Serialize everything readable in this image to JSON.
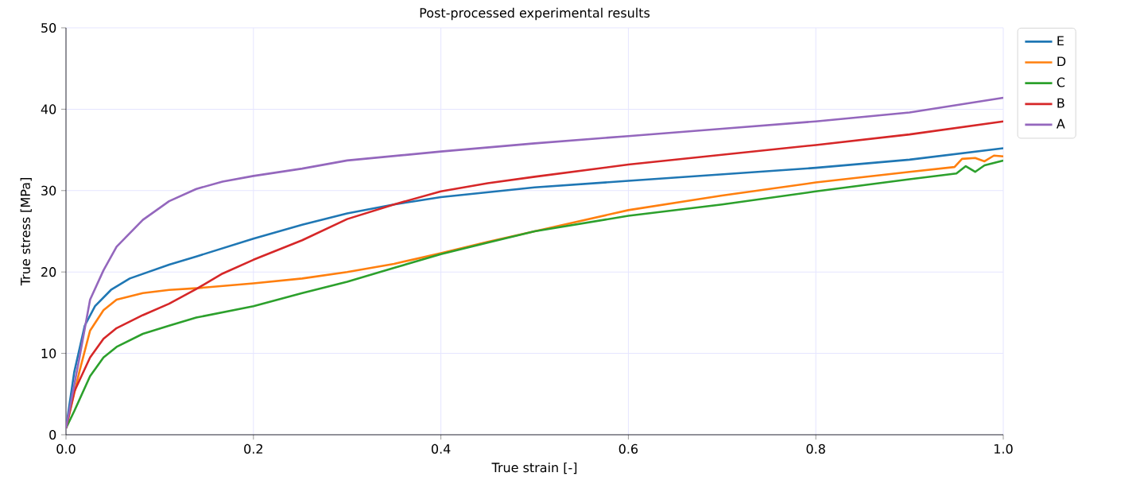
{
  "chart_data": {
    "type": "line",
    "title": "Post-processed experimental results",
    "xlabel": "True strain [-]",
    "ylabel": "True stress [MPa]",
    "xlim": [
      0,
      1
    ],
    "ylim": [
      0,
      50
    ],
    "xticks": [
      {
        "value": 0,
        "label": "0.0"
      },
      0.2,
      0.4,
      0.6,
      0.8,
      {
        "value": 1,
        "label": "1.0"
      }
    ],
    "yticks": [
      0,
      10,
      20,
      30,
      40,
      50
    ],
    "grid": true,
    "legend": "top right",
    "marker": "none",
    "line_style": "solid",
    "series": [
      {
        "name": "E",
        "color": "#1f77b4",
        "x": [
          0,
          0.0088,
          0.02,
          0.031,
          0.048,
          0.068,
          0.11,
          0.139,
          0.2,
          0.252,
          0.3,
          0.35,
          0.4,
          0.5,
          0.6,
          0.7,
          0.8,
          0.9,
          1.0
        ],
        "values": [
          0.8,
          7.7,
          13.4,
          15.8,
          17.8,
          19.2,
          20.9,
          21.9,
          24.1,
          25.8,
          27.2,
          28.3,
          29.2,
          30.4,
          31.2,
          32.0,
          32.8,
          33.8,
          35.2
        ]
      },
      {
        "name": "D",
        "color": "#ff7f0e",
        "x": [
          0,
          0.0144,
          0.0257,
          0.04,
          0.054,
          0.082,
          0.11,
          0.139,
          0.2,
          0.252,
          0.3,
          0.35,
          0.4,
          0.45,
          0.5,
          0.6,
          0.7,
          0.8,
          0.9,
          0.948,
          0.956,
          0.97,
          0.98,
          0.99,
          1.0
        ],
        "values": [
          0.8,
          7.8,
          12.8,
          15.3,
          16.6,
          17.4,
          17.8,
          18.0,
          18.6,
          19.2,
          20.0,
          21.0,
          22.3,
          23.7,
          25.0,
          27.6,
          29.4,
          31.0,
          32.3,
          32.9,
          33.9,
          34.0,
          33.6,
          34.3,
          34.2
        ]
      },
      {
        "name": "C",
        "color": "#2ca02c",
        "x": [
          0,
          0.0088,
          0.0257,
          0.04,
          0.054,
          0.082,
          0.11,
          0.139,
          0.2,
          0.252,
          0.3,
          0.35,
          0.4,
          0.45,
          0.5,
          0.6,
          0.7,
          0.8,
          0.9,
          0.95,
          0.96,
          0.97,
          0.98,
          0.99,
          1.0
        ],
        "values": [
          0.8,
          2.9,
          7.2,
          9.5,
          10.8,
          12.4,
          13.4,
          14.4,
          15.8,
          17.4,
          18.8,
          20.5,
          22.2,
          23.6,
          25.0,
          26.9,
          28.3,
          29.9,
          31.4,
          32.1,
          33.0,
          32.3,
          33.1,
          33.4,
          33.7
        ]
      },
      {
        "name": "B",
        "color": "#d62728",
        "x": [
          0,
          0.0088,
          0.0257,
          0.04,
          0.054,
          0.082,
          0.11,
          0.139,
          0.167,
          0.2,
          0.252,
          0.3,
          0.35,
          0.4,
          0.45,
          0.5,
          0.6,
          0.7,
          0.8,
          0.9,
          1.0
        ],
        "values": [
          0.8,
          5.3,
          9.5,
          11.8,
          13.1,
          14.7,
          16.1,
          17.9,
          19.8,
          21.5,
          23.9,
          26.5,
          28.3,
          29.9,
          30.9,
          31.7,
          33.2,
          34.4,
          35.6,
          36.9,
          38.5
        ]
      },
      {
        "name": "A",
        "color": "#9467bd",
        "x": [
          0,
          0.0144,
          0.0257,
          0.04,
          0.054,
          0.082,
          0.11,
          0.139,
          0.167,
          0.2,
          0.252,
          0.3,
          0.4,
          0.5,
          0.6,
          0.7,
          0.8,
          0.9,
          1.0
        ],
        "values": [
          0.8,
          9.5,
          16.6,
          20.2,
          23.1,
          26.4,
          28.7,
          30.2,
          31.1,
          31.8,
          32.7,
          33.7,
          34.8,
          35.8,
          36.7,
          37.6,
          38.5,
          39.6,
          41.4
        ]
      }
    ]
  }
}
